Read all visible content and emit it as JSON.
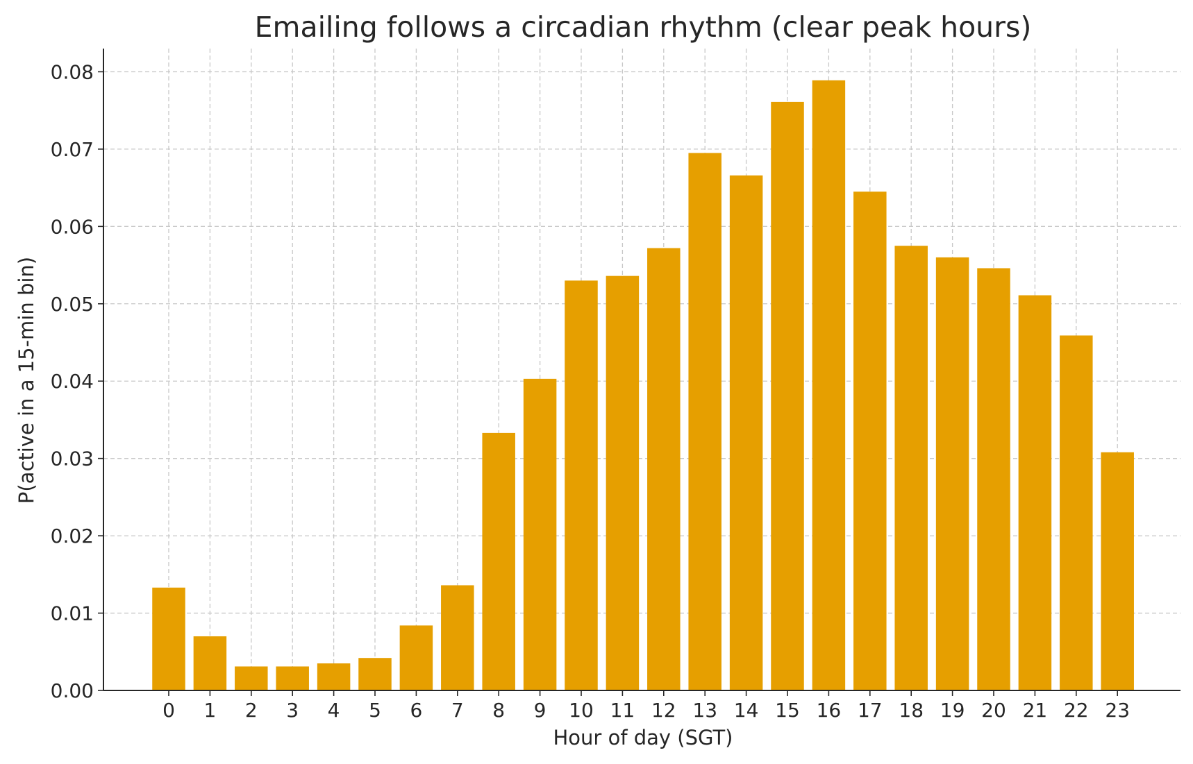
{
  "chart_data": {
    "type": "bar",
    "title": "Emailing follows a circadian rhythm (clear peak hours)",
    "xlabel": "Hour of day (SGT)",
    "ylabel": "P(active in a 15-min bin)",
    "categories": [
      "0",
      "1",
      "2",
      "3",
      "4",
      "5",
      "6",
      "7",
      "8",
      "9",
      "10",
      "11",
      "12",
      "13",
      "14",
      "15",
      "16",
      "17",
      "18",
      "19",
      "20",
      "21",
      "22",
      "23"
    ],
    "values": [
      0.0133,
      0.007,
      0.0031,
      0.0031,
      0.0035,
      0.0042,
      0.0084,
      0.0136,
      0.0333,
      0.0403,
      0.053,
      0.0536,
      0.0572,
      0.0695,
      0.0666,
      0.0761,
      0.0789,
      0.0645,
      0.0575,
      0.056,
      0.0546,
      0.0511,
      0.0459,
      0.0308
    ],
    "ylim": [
      0,
      0.083
    ],
    "yticks": [
      "0.00",
      "0.01",
      "0.02",
      "0.03",
      "0.04",
      "0.05",
      "0.06",
      "0.07",
      "0.08"
    ],
    "grid": true,
    "bar_color": "#E69F00"
  }
}
